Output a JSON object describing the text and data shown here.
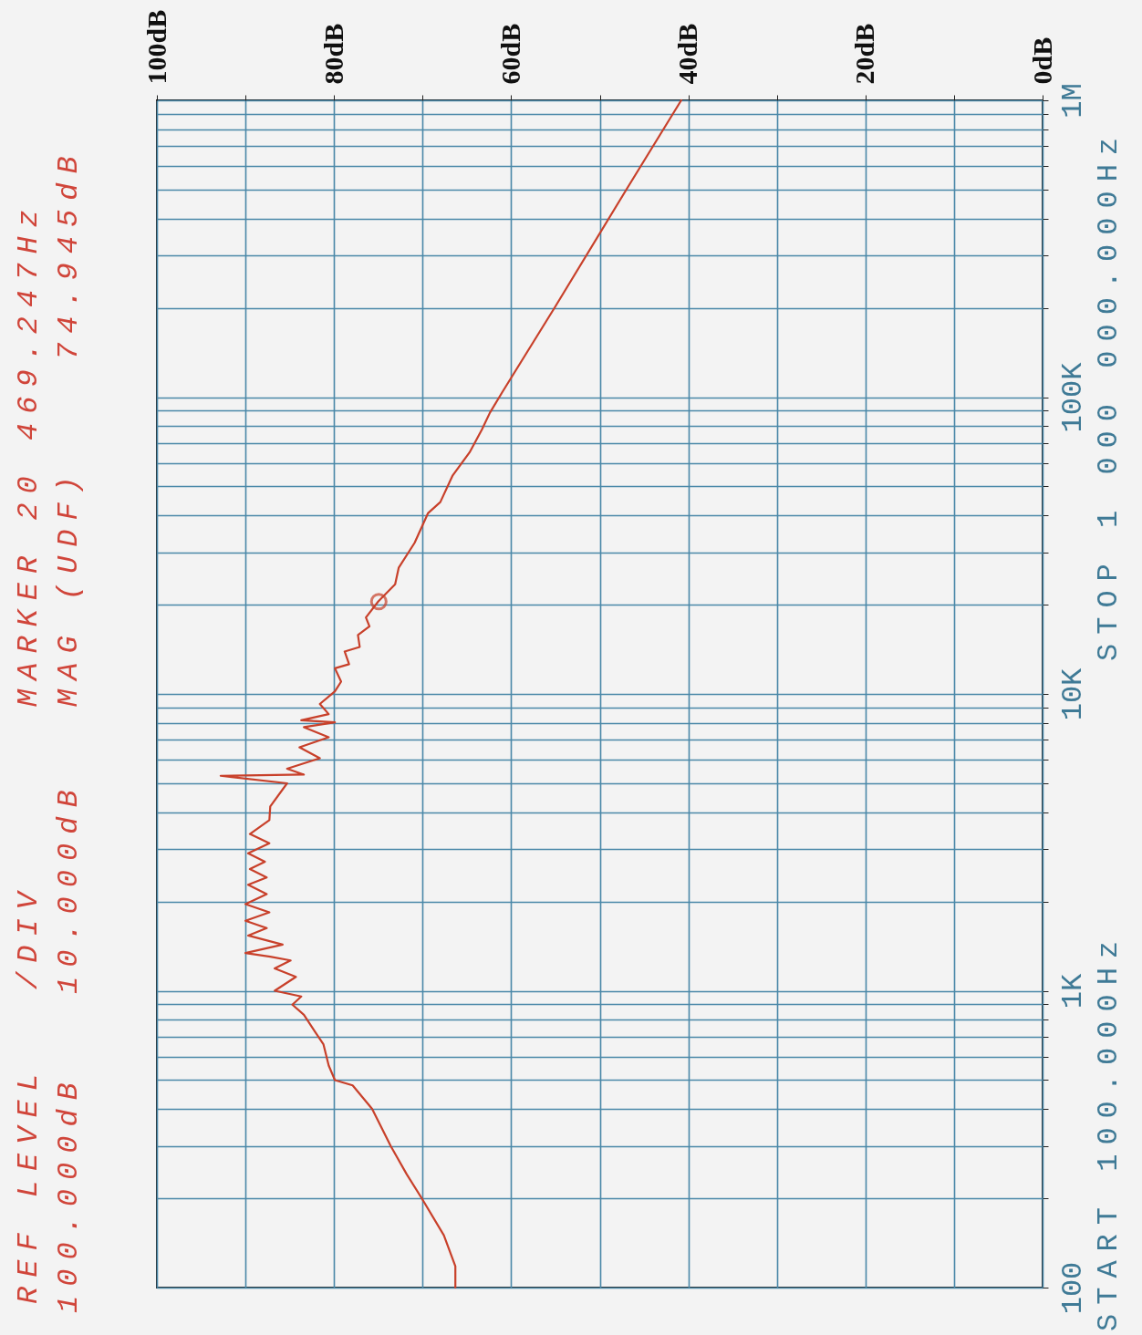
{
  "chart_data": {
    "type": "line",
    "log": "y",
    "grid": true,
    "xlim": [
      100,
      0
    ],
    "ylim": [
      100,
      1000000
    ],
    "xticks": [
      {
        "value": 100,
        "label": "100dB"
      },
      {
        "value": 90,
        "label": null
      },
      {
        "value": 80,
        "label": "80dB"
      },
      {
        "value": 70,
        "label": null
      },
      {
        "value": 60,
        "label": "60dB"
      },
      {
        "value": 50,
        "label": null
      },
      {
        "value": 40,
        "label": "40dB"
      },
      {
        "value": 30,
        "label": null
      },
      {
        "value": 20,
        "label": "20dB"
      },
      {
        "value": 10,
        "label": null
      },
      {
        "value": 0,
        "label": "0dB"
      }
    ],
    "yticks": [
      {
        "value": 100,
        "label": "100"
      },
      {
        "value": 200,
        "label": null
      },
      {
        "value": 300,
        "label": null
      },
      {
        "value": 400,
        "label": null
      },
      {
        "value": 500,
        "label": null
      },
      {
        "value": 600,
        "label": null
      },
      {
        "value": 700,
        "label": null
      },
      {
        "value": 800,
        "label": null
      },
      {
        "value": 900,
        "label": null
      },
      {
        "value": 1000,
        "label": "1K"
      },
      {
        "value": 2000,
        "label": null
      },
      {
        "value": 3000,
        "label": null
      },
      {
        "value": 4000,
        "label": null
      },
      {
        "value": 5000,
        "label": null
      },
      {
        "value": 6000,
        "label": null
      },
      {
        "value": 7000,
        "label": null
      },
      {
        "value": 8000,
        "label": null
      },
      {
        "value": 9000,
        "label": null
      },
      {
        "value": 10000,
        "label": "10K"
      },
      {
        "value": 20000,
        "label": null
      },
      {
        "value": 30000,
        "label": null
      },
      {
        "value": 40000,
        "label": null
      },
      {
        "value": 50000,
        "label": null
      },
      {
        "value": 60000,
        "label": null
      },
      {
        "value": 70000,
        "label": null
      },
      {
        "value": 80000,
        "label": null
      },
      {
        "value": 90000,
        "label": null
      },
      {
        "value": 100000,
        "label": "100K"
      },
      {
        "value": 200000,
        "label": null
      },
      {
        "value": 300000,
        "label": null
      },
      {
        "value": 400000,
        "label": null
      },
      {
        "value": 500000,
        "label": null
      },
      {
        "value": 600000,
        "label": null
      },
      {
        "value": 700000,
        "label": null
      },
      {
        "value": 800000,
        "label": null
      },
      {
        "value": 900000,
        "label": null
      },
      {
        "value": 1000000,
        "label": "1M"
      }
    ],
    "series": [
      {
        "color": "#c8402a",
        "x": [
          66.3,
          66.3,
          67.6,
          70.1,
          71.8,
          73.6,
          75.7,
          77.9,
          79.9,
          80.6,
          81.2,
          82.1,
          83.4,
          84.7,
          83.7,
          86.7,
          84.3,
          86.7,
          84.9,
          87.2,
          90.0,
          85.8,
          89.7,
          87.6,
          90.0,
          87.3,
          90.0,
          87.6,
          89.7,
          87.6,
          89.5,
          87.8,
          89.7,
          87.3,
          89.5,
          87.3,
          87.2,
          85.3,
          92.8,
          83.4,
          85.3,
          81.6,
          83.9,
          80.6,
          83.4,
          79.9,
          83.7,
          80.6,
          81.6,
          79.9,
          79.2,
          79.9,
          78.3,
          78.8,
          77.1,
          77.3,
          76.0,
          76.4,
          75.0,
          73.1,
          72.7,
          70.9,
          69.4,
          68.0,
          66.6,
          64.7,
          63.3,
          62.4,
          61.0,
          55.1,
          47.0,
          40.8
        ],
        "values": [
          100,
          118,
          150,
          200,
          241,
          300,
          400,
          480,
          500,
          560,
          661,
          724,
          830,
          898,
          957,
          1000,
          1114,
          1189,
          1265,
          1303,
          1340,
          1430,
          1535,
          1626,
          1722,
          1837,
          1959,
          2118,
          2277,
          2410,
          2570,
          2722,
          2904,
          3141,
          3375,
          3757,
          4178,
          5000,
          5300,
          5350,
          5600,
          6070,
          6610,
          7150,
          7730,
          8020,
          8150,
          8550,
          9250,
          10200,
          11000,
          12200,
          12600,
          13900,
          14400,
          15800,
          16900,
          18100,
          20500,
          23400,
          26600,
          32300,
          40600,
          44300,
          54500,
          65100,
          77800,
          88600,
          104000,
          200000,
          500000,
          1000000
        ]
      },
      {
        "type": "scatter",
        "color": "#c8402a",
        "marker": "circle",
        "x": [
          74.945
        ],
        "values": [
          20469.247
        ]
      }
    ],
    "annotations": [
      "REF LEVEL",
      "100.000dB",
      "/DIV",
      "10.000dB",
      "MARKER 20 469.247Hz",
      "MAG (UDF)",
      "74.945dB",
      "START 100.000Hz",
      "STOP 1 000 000.000Hz"
    ]
  }
}
